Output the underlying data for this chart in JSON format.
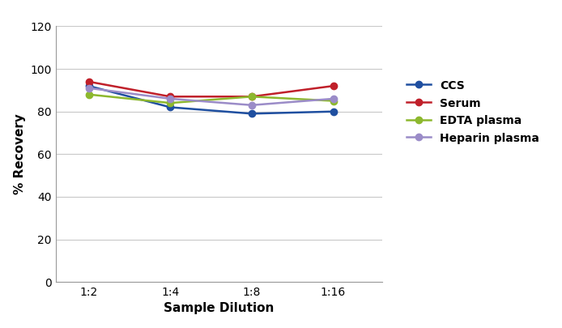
{
  "x_labels": [
    "1:2",
    "1:4",
    "1:8",
    "1:16"
  ],
  "x_positions": [
    1,
    2,
    3,
    4
  ],
  "series": [
    {
      "name": "CCS",
      "color": "#1f4fa0",
      "values": [
        92,
        82,
        79,
        80
      ]
    },
    {
      "name": "Serum",
      "color": "#c0202a",
      "values": [
        94,
        87,
        87,
        92
      ]
    },
    {
      "name": "EDTA plasma",
      "color": "#8db82e",
      "values": [
        88,
        84,
        87,
        85
      ]
    },
    {
      "name": "Heparin plasma",
      "color": "#9b8cc8",
      "values": [
        91,
        86,
        83,
        86
      ]
    }
  ],
  "ylabel": "% Recovery",
  "xlabel": "Sample Dilution",
  "ylim": [
    0,
    120
  ],
  "yticks": [
    0,
    20,
    40,
    60,
    80,
    100,
    120
  ],
  "background_color": "#ffffff",
  "plot_bg_color": "#ffffff",
  "grid_color": "#c8c8c8",
  "legend_fontsize": 10,
  "axis_label_fontsize": 11,
  "tick_fontsize": 10,
  "marker_size": 6,
  "linewidth": 1.8
}
